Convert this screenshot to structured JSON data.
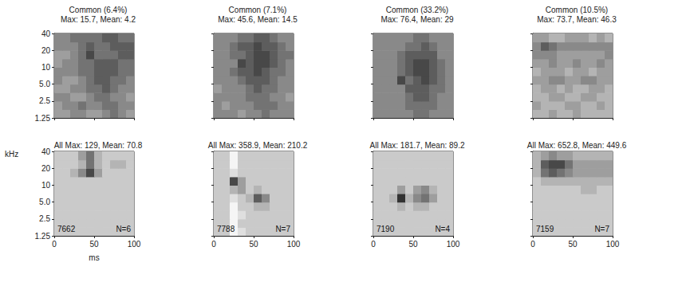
{
  "chart_data": [
    {
      "type": "heatmap",
      "title": "Common (6.4%)",
      "subtitle": "Max: 15.7, Mean: 4.2",
      "log": "y",
      "tick_labels": "y",
      "xlim": [
        0,
        100
      ],
      "xticks": [
        0,
        50,
        100
      ],
      "ylim": [
        1.25,
        40
      ],
      "yticks": [
        1.25,
        2.5,
        {
          "value": 5,
          "label": "5.0"
        },
        10,
        20,
        40
      ],
      "x_bins": [
        0,
        10,
        20,
        30,
        40,
        50,
        60,
        70,
        80,
        90,
        100
      ],
      "y_bins": [
        1.25,
        1.77,
        2.5,
        3.54,
        5,
        7.07,
        10,
        14.14,
        20,
        28.28,
        40
      ],
      "color_range": [
        0,
        9
      ],
      "cells": [
        [
          4,
          4,
          5,
          5,
          4,
          4,
          5,
          6,
          5,
          4
        ],
        [
          4,
          5,
          5,
          6,
          5,
          5,
          6,
          6,
          5,
          5
        ],
        [
          5,
          5,
          4,
          4,
          5,
          6,
          6,
          5,
          5,
          4
        ],
        [
          4,
          4,
          5,
          5,
          6,
          6,
          7,
          6,
          5,
          5
        ],
        [
          5,
          4,
          4,
          5,
          6,
          7,
          7,
          6,
          6,
          5
        ],
        [
          5,
          5,
          5,
          6,
          6,
          7,
          7,
          7,
          6,
          6
        ],
        [
          4,
          5,
          5,
          6,
          6,
          7,
          7,
          7,
          6,
          6
        ],
        [
          4,
          4,
          5,
          6,
          8,
          6,
          6,
          6,
          7,
          7
        ],
        [
          5,
          5,
          5,
          6,
          7,
          6,
          6,
          7,
          7,
          7
        ],
        [
          5,
          5,
          6,
          6,
          6,
          6,
          7,
          7,
          6,
          6
        ]
      ]
    },
    {
      "type": "heatmap",
      "title": "Common (7.1%)",
      "subtitle": "Max: 45.6, Mean: 14.5",
      "log": "y",
      "tick_labels": false,
      "xlim": [
        0,
        100
      ],
      "xticks": [
        0,
        50,
        100
      ],
      "ylim": [
        1.25,
        40
      ],
      "yticks": [
        1.25,
        2.5,
        {
          "value": 5,
          "label": "5.0"
        },
        10,
        20,
        40
      ],
      "x_bins": [
        0,
        10,
        20,
        30,
        40,
        50,
        60,
        70,
        80,
        90,
        100
      ],
      "y_bins": [
        1.25,
        1.77,
        2.5,
        3.54,
        5,
        7.07,
        10,
        14.14,
        20,
        28.28,
        40
      ],
      "color_range": [
        0,
        9
      ],
      "cells": [
        [
          5,
          5,
          5,
          4,
          5,
          5,
          6,
          5,
          5,
          5
        ],
        [
          5,
          4,
          5,
          5,
          5,
          6,
          6,
          6,
          5,
          5
        ],
        [
          5,
          5,
          5,
          5,
          6,
          6,
          6,
          5,
          5,
          4
        ],
        [
          4,
          5,
          5,
          5,
          6,
          7,
          6,
          6,
          5,
          5
        ],
        [
          5,
          5,
          5,
          6,
          7,
          7,
          7,
          6,
          5,
          5
        ],
        [
          5,
          5,
          6,
          7,
          7,
          8,
          7,
          6,
          6,
          5
        ],
        [
          5,
          5,
          5,
          8,
          7,
          8,
          8,
          7,
          6,
          5
        ],
        [
          5,
          5,
          6,
          6,
          7,
          8,
          8,
          7,
          6,
          6
        ],
        [
          5,
          5,
          6,
          7,
          7,
          8,
          7,
          7,
          6,
          5
        ],
        [
          5,
          5,
          5,
          6,
          6,
          7,
          7,
          6,
          5,
          5
        ]
      ]
    },
    {
      "type": "heatmap",
      "title": "Common (33.2%)",
      "subtitle": "Max: 76.4, Mean: 29",
      "log": "y",
      "tick_labels": false,
      "xlim": [
        0,
        100
      ],
      "xticks": [
        0,
        50,
        100
      ],
      "ylim": [
        1.25,
        40
      ],
      "yticks": [
        1.25,
        2.5,
        {
          "value": 5,
          "label": "5.0"
        },
        10,
        20,
        40
      ],
      "x_bins": [
        0,
        10,
        20,
        30,
        40,
        50,
        60,
        70,
        80,
        90,
        100
      ],
      "y_bins": [
        1.25,
        1.77,
        2.5,
        3.54,
        5,
        7.07,
        10,
        14.14,
        20,
        28.28,
        40
      ],
      "color_range": [
        0,
        9
      ],
      "cells": [
        [
          5,
          5,
          5,
          5,
          5,
          6,
          6,
          5,
          5,
          5
        ],
        [
          5,
          5,
          5,
          5,
          6,
          6,
          6,
          6,
          5,
          5
        ],
        [
          5,
          5,
          5,
          5,
          6,
          7,
          7,
          6,
          5,
          5
        ],
        [
          5,
          5,
          5,
          5,
          7,
          7,
          7,
          6,
          6,
          5
        ],
        [
          5,
          5,
          5,
          8,
          6,
          7,
          8,
          7,
          6,
          5
        ],
        [
          5,
          5,
          5,
          6,
          7,
          8,
          8,
          7,
          6,
          5
        ],
        [
          5,
          5,
          5,
          6,
          7,
          8,
          8,
          7,
          6,
          5
        ],
        [
          5,
          5,
          5,
          6,
          7,
          7,
          7,
          7,
          5,
          5
        ],
        [
          5,
          5,
          5,
          5,
          6,
          6,
          7,
          6,
          5,
          5
        ],
        [
          5,
          5,
          5,
          5,
          5,
          6,
          6,
          5,
          5,
          5
        ]
      ]
    },
    {
      "type": "heatmap",
      "title": "Common (10.5%)",
      "subtitle": "Max: 73.7, Mean: 46.3",
      "log": "y",
      "tick_labels": false,
      "xlim": [
        0,
        100
      ],
      "xticks": [
        0,
        50,
        100
      ],
      "ylim": [
        1.25,
        40
      ],
      "yticks": [
        1.25,
        2.5,
        {
          "value": 5,
          "label": "5.0"
        },
        10,
        20,
        40
      ],
      "x_bins": [
        0,
        10,
        20,
        30,
        40,
        50,
        60,
        70,
        80,
        90,
        100
      ],
      "y_bins": [
        1.25,
        1.77,
        2.5,
        3.54,
        5,
        7.07,
        10,
        14.14,
        20,
        28.28,
        40
      ],
      "color_range": [
        0,
        9
      ],
      "cells": [
        [
          3,
          3,
          4,
          3,
          3,
          4,
          3,
          3,
          3,
          3
        ],
        [
          4,
          3,
          3,
          3,
          4,
          4,
          3,
          3,
          4,
          3
        ],
        [
          3,
          3,
          4,
          4,
          3,
          3,
          4,
          4,
          3,
          3
        ],
        [
          3,
          4,
          4,
          3,
          4,
          3,
          3,
          4,
          4,
          3
        ],
        [
          4,
          4,
          5,
          5,
          4,
          4,
          5,
          5,
          4,
          4
        ],
        [
          3,
          4,
          4,
          4,
          3,
          4,
          4,
          3,
          4,
          4
        ],
        [
          4,
          4,
          5,
          4,
          4,
          5,
          4,
          4,
          5,
          4
        ],
        [
          5,
          5,
          5,
          4,
          4,
          4,
          4,
          4,
          4,
          5
        ],
        [
          5,
          7,
          6,
          5,
          5,
          5,
          5,
          5,
          5,
          5
        ],
        [
          4,
          4,
          3,
          3,
          4,
          4,
          4,
          3,
          4,
          3
        ]
      ]
    },
    {
      "type": "heatmap",
      "title": "All Max: 129, Mean: 70.8",
      "annotations": [
        "7662",
        "N=6"
      ],
      "xlabel": "ms",
      "ylabel": "kHz",
      "log": "y",
      "tick_labels": true,
      "xlim": [
        0,
        100
      ],
      "xticks": [
        0,
        50,
        100
      ],
      "ylim": [
        1.25,
        40
      ],
      "yticks": [
        1.25,
        2.5,
        {
          "value": 5,
          "label": "5.0"
        },
        10,
        20,
        40
      ],
      "x_bins": [
        0,
        10,
        20,
        30,
        40,
        50,
        60,
        70,
        80,
        90,
        100
      ],
      "y_bins": [
        1.25,
        1.77,
        2.5,
        3.54,
        5,
        7.07,
        10,
        14.14,
        20,
        28.28,
        40
      ],
      "color_range": [
        0,
        9
      ],
      "cells": [
        [
          2,
          2,
          2,
          2,
          2,
          2,
          2,
          2,
          2,
          2
        ],
        [
          2,
          2,
          2,
          2,
          2,
          2,
          2,
          2,
          2,
          2
        ],
        [
          2,
          2,
          2,
          2,
          2,
          2,
          2,
          2,
          2,
          2
        ],
        [
          2,
          2,
          2,
          2,
          2,
          2,
          2,
          2,
          2,
          2
        ],
        [
          2,
          2,
          2,
          2,
          2,
          2,
          2,
          2,
          2,
          2
        ],
        [
          2,
          2,
          2,
          2,
          2,
          2,
          2,
          2,
          2,
          2
        ],
        [
          2,
          2,
          2,
          2,
          2,
          2,
          2,
          2,
          2,
          2
        ],
        [
          2,
          2,
          3,
          5,
          8,
          4,
          2,
          2,
          2,
          2
        ],
        [
          2,
          2,
          2,
          3,
          6,
          3,
          2,
          3,
          3,
          2
        ],
        [
          2,
          2,
          2,
          4,
          6,
          3,
          2,
          2,
          2,
          2
        ]
      ]
    },
    {
      "type": "heatmap",
      "title": "All Max: 358.9, Mean: 210.2",
      "annotations": [
        "7788",
        "N=7"
      ],
      "log": "y",
      "tick_labels": "x",
      "xlim": [
        0,
        100
      ],
      "xticks": [
        0,
        50,
        100
      ],
      "ylim": [
        1.25,
        40
      ],
      "yticks": [
        1.25,
        2.5,
        {
          "value": 5,
          "label": "5.0"
        },
        10,
        20,
        40
      ],
      "x_bins": [
        0,
        10,
        20,
        30,
        40,
        50,
        60,
        70,
        80,
        90,
        100
      ],
      "y_bins": [
        1.25,
        1.77,
        2.5,
        3.54,
        5,
        7.07,
        10,
        14.14,
        20,
        28.28,
        40
      ],
      "color_range": [
        0,
        9
      ],
      "cells": [
        [
          2,
          2,
          0,
          1,
          2,
          2,
          2,
          2,
          2,
          2
        ],
        [
          2,
          2,
          0,
          2,
          2,
          2,
          2,
          2,
          2,
          2
        ],
        [
          2,
          2,
          0,
          1,
          2,
          2,
          2,
          2,
          2,
          2
        ],
        [
          2,
          2,
          0,
          2,
          2,
          3,
          3,
          2,
          2,
          2
        ],
        [
          2,
          2,
          1,
          2,
          3,
          7,
          5,
          2,
          2,
          2
        ],
        [
          2,
          2,
          3,
          4,
          2,
          3,
          2,
          2,
          2,
          2
        ],
        [
          2,
          2,
          8,
          4,
          2,
          2,
          2,
          2,
          2,
          2
        ],
        [
          2,
          2,
          1,
          2,
          2,
          2,
          2,
          2,
          2,
          2
        ],
        [
          2,
          2,
          0,
          2,
          2,
          2,
          2,
          2,
          2,
          2
        ],
        [
          2,
          2,
          0,
          2,
          2,
          2,
          2,
          2,
          2,
          2
        ]
      ]
    },
    {
      "type": "heatmap",
      "title": "All Max: 181.7, Mean: 89.2",
      "annotations": [
        "7190",
        "N=4"
      ],
      "log": "y",
      "tick_labels": "x",
      "xlim": [
        0,
        100
      ],
      "xticks": [
        0,
        50,
        100
      ],
      "ylim": [
        1.25,
        40
      ],
      "yticks": [
        1.25,
        2.5,
        {
          "value": 5,
          "label": "5.0"
        },
        10,
        20,
        40
      ],
      "x_bins": [
        0,
        10,
        20,
        30,
        40,
        50,
        60,
        70,
        80,
        90,
        100
      ],
      "y_bins": [
        1.25,
        1.77,
        2.5,
        3.54,
        5,
        7.07,
        10,
        14.14,
        20,
        28.28,
        40
      ],
      "color_range": [
        0,
        9
      ],
      "cells": [
        [
          2,
          2,
          2,
          2,
          2,
          2,
          2,
          2,
          2,
          2
        ],
        [
          2,
          2,
          2,
          2,
          2,
          2,
          2,
          2,
          2,
          2
        ],
        [
          2,
          2,
          2,
          2,
          2,
          2,
          2,
          2,
          2,
          2
        ],
        [
          2,
          2,
          2,
          3,
          2,
          3,
          3,
          2,
          2,
          2
        ],
        [
          2,
          2,
          3,
          9,
          3,
          5,
          6,
          4,
          2,
          2
        ],
        [
          2,
          2,
          2,
          4,
          2,
          4,
          5,
          3,
          2,
          2
        ],
        [
          2,
          2,
          2,
          2,
          2,
          2,
          2,
          2,
          2,
          2
        ],
        [
          2,
          2,
          2,
          2,
          2,
          2,
          2,
          2,
          2,
          2
        ],
        [
          2,
          2,
          2,
          2,
          2,
          2,
          2,
          2,
          2,
          2
        ],
        [
          2,
          2,
          2,
          2,
          2,
          2,
          2,
          2,
          2,
          2
        ]
      ]
    },
    {
      "type": "heatmap",
      "title": "All Max: 652.8, Mean: 449.6",
      "annotations": [
        "7159",
        "N=7"
      ],
      "log": "y",
      "tick_labels": "x",
      "xlim": [
        0,
        100
      ],
      "xticks": [
        0,
        50,
        100
      ],
      "ylim": [
        1.25,
        40
      ],
      "yticks": [
        1.25,
        2.5,
        {
          "value": 5,
          "label": "5.0"
        },
        10,
        20,
        40
      ],
      "x_bins": [
        0,
        10,
        20,
        30,
        40,
        50,
        60,
        70,
        80,
        90,
        100
      ],
      "y_bins": [
        1.25,
        1.77,
        2.5,
        3.54,
        5,
        7.07,
        10,
        14.14,
        20,
        28.28,
        40
      ],
      "color_range": [
        0,
        9
      ],
      "cells": [
        [
          2,
          2,
          2,
          2,
          2,
          2,
          2,
          2,
          2,
          2
        ],
        [
          2,
          2,
          2,
          2,
          2,
          2,
          2,
          2,
          2,
          2
        ],
        [
          2,
          2,
          2,
          2,
          2,
          2,
          2,
          2,
          2,
          2
        ],
        [
          2,
          2,
          2,
          2,
          2,
          2,
          2,
          2,
          2,
          2
        ],
        [
          2,
          2,
          2,
          2,
          2,
          2,
          2,
          2,
          2,
          2
        ],
        [
          2,
          2,
          2,
          2,
          2,
          2,
          3,
          3,
          2,
          2
        ],
        [
          2,
          3,
          3,
          3,
          3,
          3,
          3,
          3,
          3,
          3
        ],
        [
          3,
          6,
          7,
          6,
          5,
          4,
          4,
          4,
          4,
          4
        ],
        [
          3,
          7,
          8,
          8,
          6,
          4,
          4,
          4,
          4,
          4
        ],
        [
          3,
          4,
          5,
          4,
          4,
          3,
          3,
          3,
          3,
          3
        ]
      ]
    }
  ]
}
